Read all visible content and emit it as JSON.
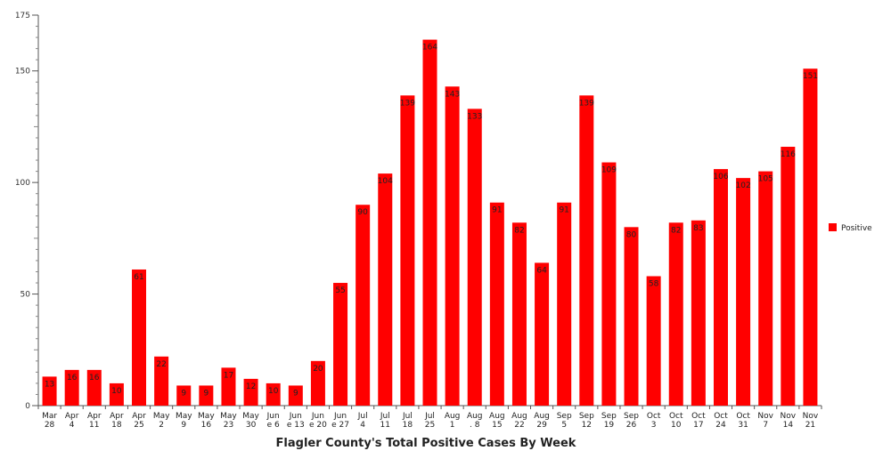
{
  "chart_data": {
    "type": "bar",
    "title": "Flagler County's Total Positive Cases By Week",
    "xlabel": "",
    "ylabel": "",
    "ylim": [
      0,
      175
    ],
    "yticks": [
      0,
      50,
      100,
      150,
      175
    ],
    "grid": false,
    "legend_position": "right",
    "bar_color": "#ff0000",
    "categories": [
      [
        "Mar",
        "28"
      ],
      [
        "Apr",
        "4"
      ],
      [
        "Apr",
        "11"
      ],
      [
        "Apr",
        "18"
      ],
      [
        "Apr",
        "25"
      ],
      [
        "May",
        "2"
      ],
      [
        "May",
        "9"
      ],
      [
        "May",
        "16"
      ],
      [
        "May",
        "23"
      ],
      [
        "May",
        "30"
      ],
      [
        "Jun",
        "e 6"
      ],
      [
        "Jun",
        "e 13"
      ],
      [
        "Jun",
        "e 20"
      ],
      [
        "Jun",
        "e 27"
      ],
      [
        "Jul",
        "4"
      ],
      [
        "Jul",
        "11"
      ],
      [
        "Jul",
        "18"
      ],
      [
        "Jul",
        "25"
      ],
      [
        "Aug",
        "1"
      ],
      [
        "Aug",
        ". 8"
      ],
      [
        "Aug",
        "15"
      ],
      [
        "Aug",
        "22"
      ],
      [
        "Aug",
        "29"
      ],
      [
        "Sep",
        "5"
      ],
      [
        "Sep",
        "12"
      ],
      [
        "Sep",
        "19"
      ],
      [
        "Sep",
        "26"
      ],
      [
        "Oct",
        "3"
      ],
      [
        "Oct",
        "10"
      ],
      [
        "Oct",
        "17"
      ],
      [
        "Oct",
        "24"
      ],
      [
        "Oct",
        "31"
      ],
      [
        "Nov",
        "7"
      ],
      [
        "Nov",
        "14"
      ],
      [
        "Nov",
        "21"
      ]
    ],
    "series": [
      {
        "name": "Positive",
        "values": [
          13,
          16,
          16,
          10,
          61,
          22,
          9,
          9,
          17,
          12,
          10,
          9,
          20,
          55,
          90,
          104,
          139,
          164,
          143,
          133,
          91,
          82,
          64,
          91,
          139,
          109,
          80,
          58,
          82,
          83,
          106,
          102,
          105,
          116,
          151
        ]
      }
    ]
  }
}
